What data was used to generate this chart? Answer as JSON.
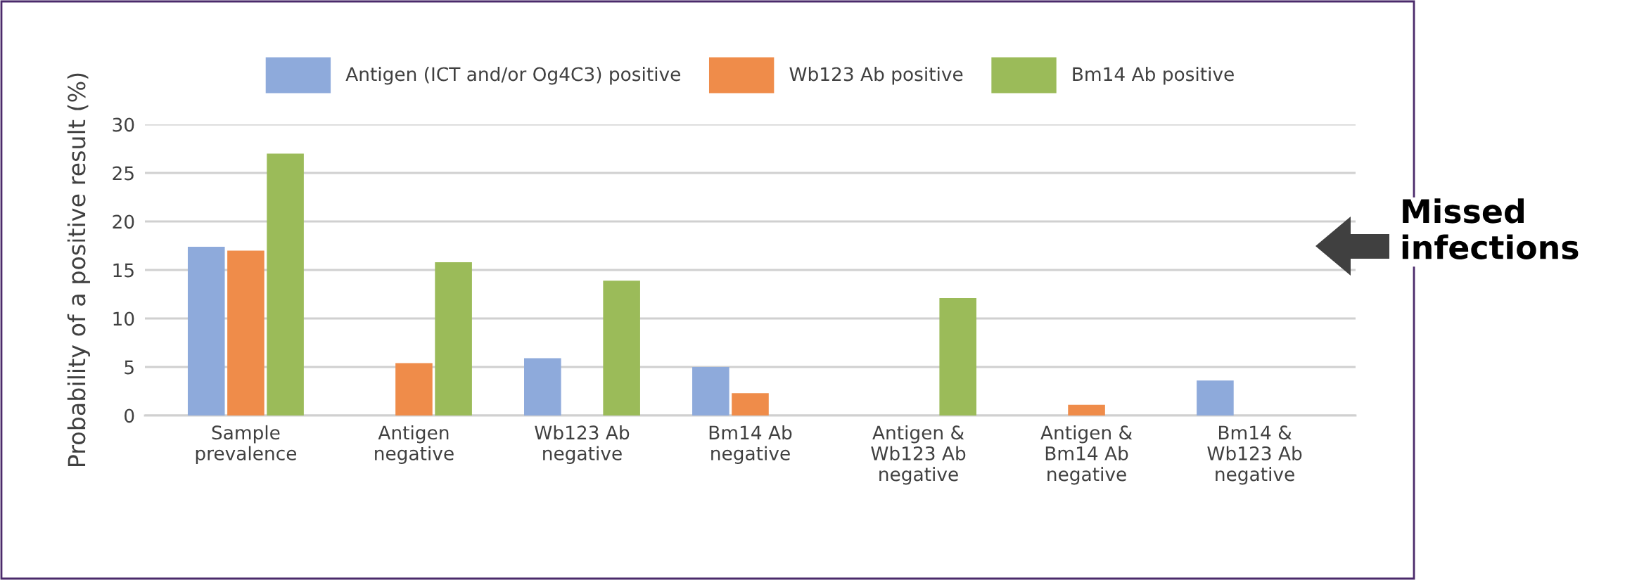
{
  "chart_data": {
    "type": "bar",
    "ylabel": "Probability of a positive result (%)",
    "categories": [
      "Sample\nprevalence",
      "Antigen\nnegative",
      "Wb123 Ab\nnegative",
      "Bm14 Ab\nnegative",
      "Antigen &\nWb123 Ab\nnegative",
      "Antigen &\nBm14 Ab\nnegative",
      "Bm14 &\nWb123 Ab\nnegative"
    ],
    "series": [
      {
        "name": "Antigen (ICT and/or Og4C3) positive",
        "color": "#8eaadb",
        "values": [
          17.4,
          0,
          5.9,
          5.0,
          0,
          0,
          3.6
        ]
      },
      {
        "name": "Wb123 Ab positive",
        "color": "#ef8c4a",
        "values": [
          17.0,
          5.4,
          0,
          2.3,
          0,
          1.1,
          0
        ]
      },
      {
        "name": "Bm14 Ab positive",
        "color": "#9bbb59",
        "values": [
          27.0,
          15.8,
          13.9,
          0,
          12.1,
          0,
          0
        ]
      }
    ],
    "ylim": [
      0,
      30
    ],
    "yticks": [
      0,
      5,
      10,
      15,
      20,
      25,
      30
    ],
    "grid": "y",
    "legend": "top",
    "annotations": [
      "Missed infections"
    ]
  }
}
